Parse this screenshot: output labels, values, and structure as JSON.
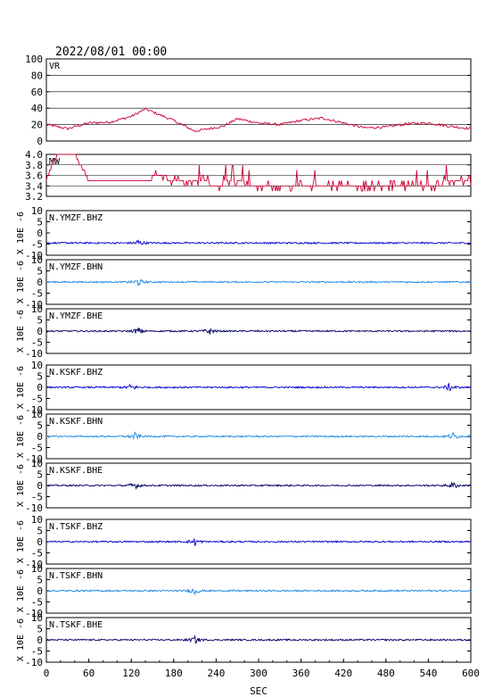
{
  "header": {
    "datetime": "2022/08/01 00:00"
  },
  "chart_data": [
    {
      "type": "line",
      "label": "VR",
      "ylim": [
        0,
        100
      ],
      "yticks": [
        "100",
        "80",
        "60",
        "40",
        "20",
        "0"
      ],
      "grid": true,
      "color": "#cc0033",
      "series": [
        {
          "x": [
            0,
            30,
            60,
            90,
            120,
            140,
            180,
            210,
            250,
            270,
            300,
            330,
            360,
            390,
            420,
            450,
            480,
            510,
            540,
            570,
            600
          ],
          "values": [
            20,
            15,
            22,
            23,
            30,
            39,
            25,
            12,
            18,
            27,
            22,
            20,
            25,
            28,
            22,
            16,
            17,
            21,
            22,
            18,
            15
          ]
        }
      ]
    },
    {
      "type": "line",
      "label": "MW",
      "ylim": [
        3.2,
        4.0
      ],
      "yticks": [
        "4.0",
        "3.8",
        "3.6",
        "3.4",
        "3.2"
      ],
      "grid": true,
      "color": "#cc0033",
      "series": [
        {
          "x": [
            0,
            10,
            20,
            40,
            60,
            80,
            100,
            120,
            140,
            160,
            180,
            200,
            220,
            240,
            260,
            300,
            340,
            380,
            420,
            460,
            500,
            540,
            580,
            600
          ],
          "values": [
            3.5,
            3.9,
            4.0,
            4.0,
            3.5,
            3.5,
            3.5,
            3.5,
            3.5,
            3.6,
            3.5,
            3.5,
            3.5,
            3.4,
            3.5,
            3.4,
            3.4,
            3.4,
            3.4,
            3.4,
            3.4,
            3.4,
            3.5,
            3.5
          ]
        }
      ]
    },
    {
      "type": "line",
      "label": "N.YMZF.BHZ",
      "ylim": [
        -10,
        10
      ],
      "yticks": [
        "10",
        "5",
        "0",
        "-5",
        "-10"
      ],
      "ylabel": "X 10E -6",
      "color": "#0000cc",
      "offset": -4.5,
      "bursts": [
        130
      ]
    },
    {
      "type": "line",
      "label": "N.YMZF.BHN",
      "ylim": [
        -10,
        10
      ],
      "yticks": [
        "10",
        "5",
        "0",
        "-5",
        "-10"
      ],
      "ylabel": "X 10E -6",
      "color": "#1a88e6",
      "offset": 0,
      "bursts": [
        130
      ]
    },
    {
      "type": "line",
      "label": "N.YMZF.BHE",
      "ylim": [
        -10,
        10
      ],
      "yticks": [
        "10",
        "5",
        "0",
        "-5",
        "-10"
      ],
      "ylabel": "X 10E -6",
      "color": "#000066",
      "offset": 0,
      "bursts": [
        130,
        230
      ]
    },
    {
      "type": "line",
      "label": "N.KSKF.BHZ",
      "ylim": [
        -10,
        10
      ],
      "yticks": [
        "10",
        "5",
        "0",
        "-5",
        "-10"
      ],
      "ylabel": "X 10E -6",
      "color": "#0000cc",
      "offset": 0,
      "bursts": [
        120,
        570
      ]
    },
    {
      "type": "line",
      "label": "N.KSKF.BHN",
      "ylim": [
        -10,
        10
      ],
      "yticks": [
        "10",
        "5",
        "0",
        "-5",
        "-10"
      ],
      "ylabel": "X 10E -6",
      "color": "#1a88e6",
      "offset": 0,
      "bursts": [
        125,
        575
      ]
    },
    {
      "type": "line",
      "label": "N.KSKF.BHE",
      "ylim": [
        -10,
        10
      ],
      "yticks": [
        "10",
        "5",
        "0",
        "-5",
        "-10"
      ],
      "ylabel": "X 10E -6",
      "color": "#000066",
      "offset": 0,
      "bursts": [
        125,
        575
      ]
    },
    {
      "type": "line",
      "label": "N.TSKF.BHZ",
      "ylim": [
        -10,
        10
      ],
      "yticks": [
        "10",
        "5",
        "0",
        "-5",
        "-10"
      ],
      "ylabel": "X 10E -6",
      "color": "#0000cc",
      "offset": 0,
      "bursts": [
        210
      ]
    },
    {
      "type": "line",
      "label": "N.TSKF.BHN",
      "ylim": [
        -10,
        10
      ],
      "yticks": [
        "10",
        "5",
        "0",
        "-5",
        "-10"
      ],
      "ylabel": "X 10E -6",
      "color": "#1a88e6",
      "offset": 0,
      "bursts": [
        210
      ]
    },
    {
      "type": "line",
      "label": "N.TSKF.BHE",
      "ylim": [
        -10,
        10
      ],
      "yticks": [
        "10",
        "5",
        "0",
        "-5",
        "-10"
      ],
      "ylabel": "X 10E -6",
      "color": "#000066",
      "offset": 0,
      "bursts": [
        210
      ]
    }
  ],
  "x_axis": {
    "xlim": [
      0,
      600
    ],
    "ticks": [
      "0",
      "60",
      "120",
      "180",
      "240",
      "300",
      "360",
      "420",
      "480",
      "540",
      "600"
    ],
    "xlabel": "SEC"
  }
}
